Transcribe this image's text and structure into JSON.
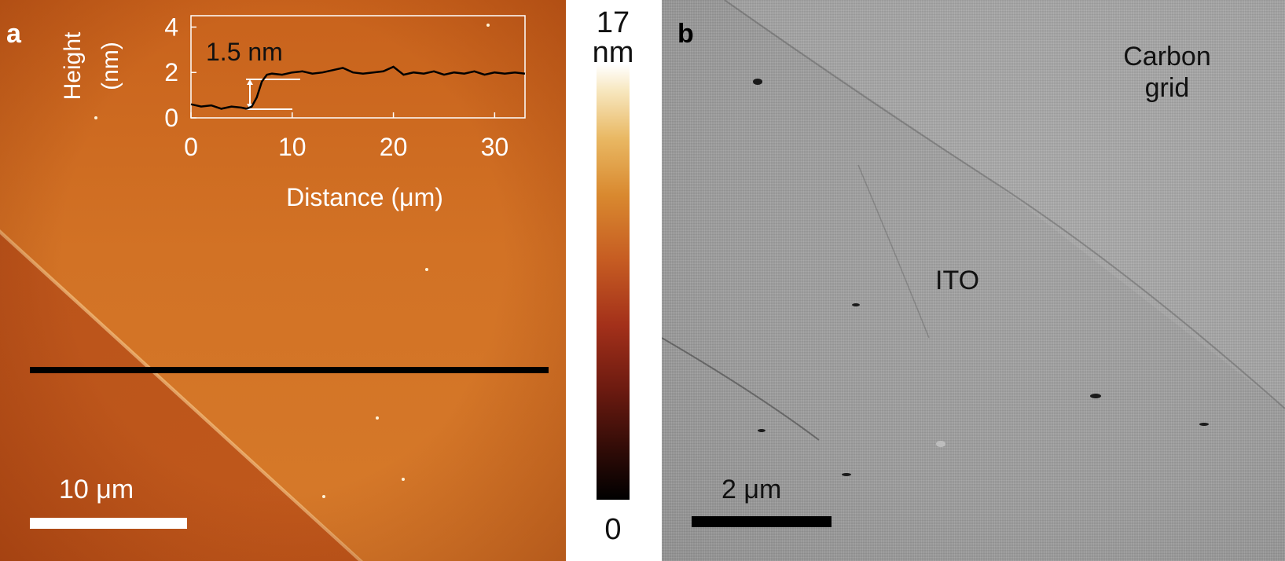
{
  "panel_a": {
    "letter": "a",
    "scale_label": "10 μm",
    "step_label": "1.5 nm",
    "inset": {
      "ylabel_line1": "Height",
      "ylabel_line2": "(nm)",
      "xlabel": "Distance (μm)",
      "xticks": [
        "0",
        "10",
        "20",
        "30"
      ],
      "yticks": [
        "0",
        "2",
        "4"
      ]
    }
  },
  "colorbar": {
    "max": "17",
    "unit": "nm",
    "min": "0"
  },
  "panel_b": {
    "letter": "b",
    "scale_label": "2 μm",
    "region_label_1": "Carbon grid",
    "region_label_2": "ITO"
  },
  "chart_data": {
    "type": "line",
    "xlabel": "Distance (μm)",
    "ylabel": "Height (nm)",
    "xlim": [
      0,
      33
    ],
    "ylim": [
      0,
      4.5
    ],
    "grid": false,
    "annotation": "1.5 nm",
    "x": [
      0,
      1,
      2,
      3,
      4,
      5,
      5.5,
      6,
      6.5,
      7,
      7.5,
      8,
      9,
      10,
      11,
      12,
      13,
      14,
      15,
      16,
      17,
      18,
      19,
      20,
      21,
      22,
      23,
      24,
      25,
      26,
      27,
      28,
      29,
      30,
      31,
      32,
      33
    ],
    "series": [
      {
        "values": [
          0.6,
          0.5,
          0.55,
          0.4,
          0.5,
          0.45,
          0.4,
          0.5,
          0.9,
          1.6,
          1.9,
          1.95,
          1.9,
          2.0,
          2.05,
          1.95,
          2.0,
          2.1,
          2.2,
          2.0,
          1.95,
          2.0,
          2.05,
          2.25,
          1.9,
          2.0,
          1.95,
          2.05,
          1.9,
          2.0,
          1.95,
          2.05,
          1.9,
          2.0,
          1.95,
          2.0,
          1.95
        ]
      }
    ]
  }
}
